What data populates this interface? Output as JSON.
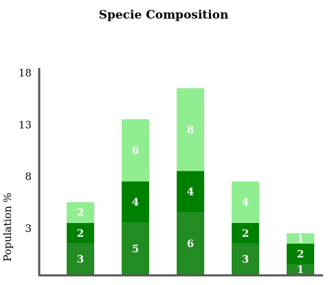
{
  "chart_data": {
    "type": "bar",
    "stacked": true,
    "title": "Specie Composition",
    "xlabel": "",
    "ylabel": "Population %",
    "yticks": [
      3,
      8,
      13,
      18
    ],
    "ylim": [
      -1,
      20
    ],
    "categories": [
      "",
      "",
      "",
      "",
      ""
    ],
    "series": [
      {
        "color": "#228b22",
        "values": [
          3,
          5,
          6,
          3,
          1
        ]
      },
      {
        "color": "#008000",
        "values": [
          2,
          4,
          4,
          2,
          2
        ]
      },
      {
        "color": "#90ee90",
        "values": [
          2,
          6,
          8,
          4,
          1
        ]
      }
    ],
    "grid": false,
    "legend": "none"
  }
}
